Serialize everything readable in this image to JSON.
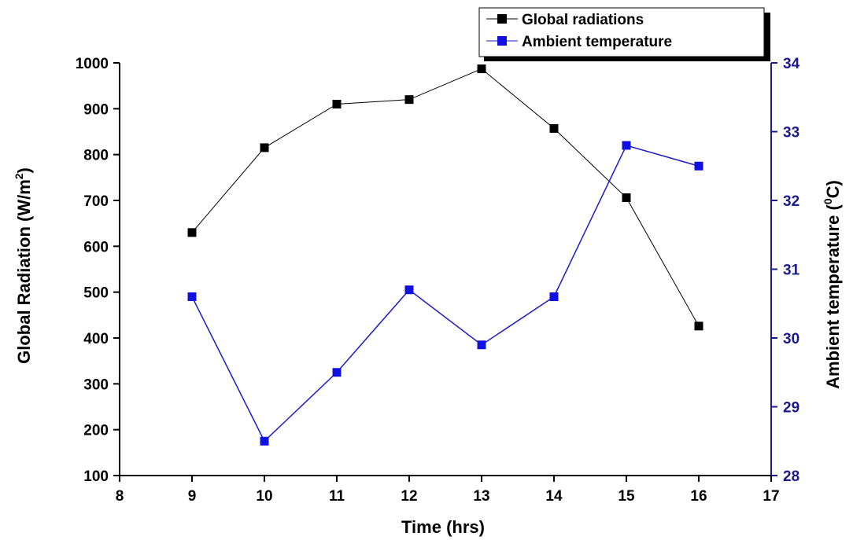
{
  "chart_data": {
    "type": "line",
    "x": [
      9,
      10,
      11,
      12,
      13,
      14,
      15,
      16
    ],
    "xlabel": "Time (hrs)",
    "xlim": [
      8,
      17
    ],
    "xticks": [
      8,
      9,
      10,
      11,
      12,
      13,
      14,
      15,
      16,
      17
    ],
    "ylabel": {
      "main": "Global Radiation (W/m",
      "sup": "2",
      "end": ")"
    },
    "ylim": [
      100,
      1000
    ],
    "yticks": [
      100,
      200,
      300,
      400,
      500,
      600,
      700,
      800,
      900,
      1000
    ],
    "y2label": {
      "main": "Ambient temperature (",
      "sup": "0",
      "end": "C)"
    },
    "y2lim": [
      28,
      34
    ],
    "y2ticks": [
      28,
      29,
      30,
      31,
      32,
      33,
      34
    ],
    "legend_position": "top-right",
    "grid": false,
    "series": [
      {
        "name": "Global radiations",
        "axis": "left",
        "color": "#000000",
        "values": [
          630,
          815,
          910,
          920,
          987,
          857,
          706,
          426
        ]
      },
      {
        "name": "Ambient temperature",
        "axis": "right",
        "color": "#1a1acc",
        "values": [
          30.6,
          28.5,
          29.5,
          30.7,
          29.9,
          30.6,
          32.8,
          32.5
        ]
      }
    ]
  },
  "colors": {
    "left_axis": "#000000",
    "right_axis": "#1a1a8c",
    "temperature_line": "#1a1acc",
    "temperature_marker": "#1010e0"
  }
}
